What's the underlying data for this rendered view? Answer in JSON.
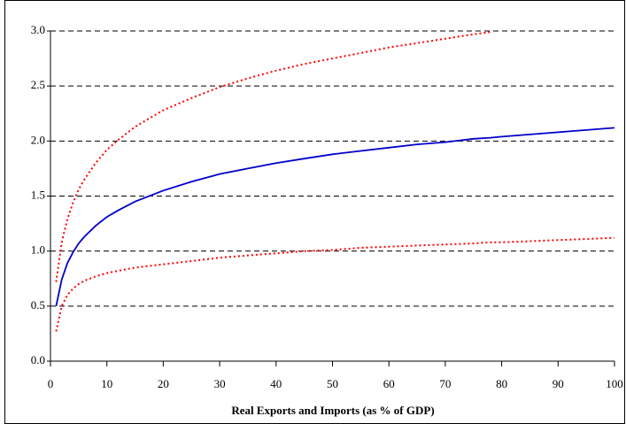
{
  "chart_data": {
    "type": "line",
    "x_label": "Real Exports and Imports (as % of GDP)",
    "x": [
      1,
      2,
      3,
      4,
      5,
      6,
      8,
      10,
      12,
      15,
      20,
      25,
      30,
      35,
      40,
      45,
      50,
      55,
      60,
      65,
      70,
      75,
      78,
      80,
      85,
      90,
      95,
      100
    ],
    "series": [
      {
        "color": "#0000cc",
        "style": "solid",
        "values": [
          0.5,
          0.74,
          0.89,
          0.99,
          1.07,
          1.13,
          1.23,
          1.31,
          1.37,
          1.45,
          1.55,
          1.63,
          1.7,
          1.75,
          1.8,
          1.84,
          1.88,
          1.91,
          1.94,
          1.97,
          1.99,
          2.02,
          2.03,
          2.04,
          2.06,
          2.08,
          2.1,
          2.12
        ]
      },
      {
        "color": "#ff0000",
        "style": "dotted",
        "values": [
          0.72,
          1.08,
          1.29,
          1.44,
          1.56,
          1.65,
          1.8,
          1.92,
          2.01,
          2.13,
          2.28,
          2.39,
          2.49,
          2.57,
          2.64,
          2.7,
          2.75,
          2.8,
          2.85,
          2.89,
          2.93,
          2.97,
          2.99,
          null,
          null,
          null,
          null,
          null
        ]
      },
      {
        "color": "#ff0000",
        "style": "dotted",
        "values": [
          0.27,
          0.5,
          0.6,
          0.66,
          0.7,
          0.73,
          0.77,
          0.8,
          0.82,
          0.85,
          0.88,
          0.91,
          0.94,
          0.96,
          0.98,
          1.0,
          1.01,
          1.03,
          1.04,
          1.05,
          1.06,
          1.07,
          1.08,
          1.08,
          1.09,
          1.1,
          1.11,
          1.12
        ]
      }
    ],
    "xlim": [
      0,
      100
    ],
    "xticks": [
      0,
      10,
      20,
      30,
      40,
      50,
      60,
      70,
      80,
      90,
      100
    ],
    "ylim": [
      0,
      3
    ],
    "yticks": [
      {
        "value": 0,
        "label": "0.0"
      },
      0.5,
      {
        "value": 1,
        "label": "1.0"
      },
      1.5,
      {
        "value": 2,
        "label": "2.0"
      },
      2.5,
      {
        "value": 3,
        "label": "3.0"
      }
    ],
    "grid": true
  }
}
